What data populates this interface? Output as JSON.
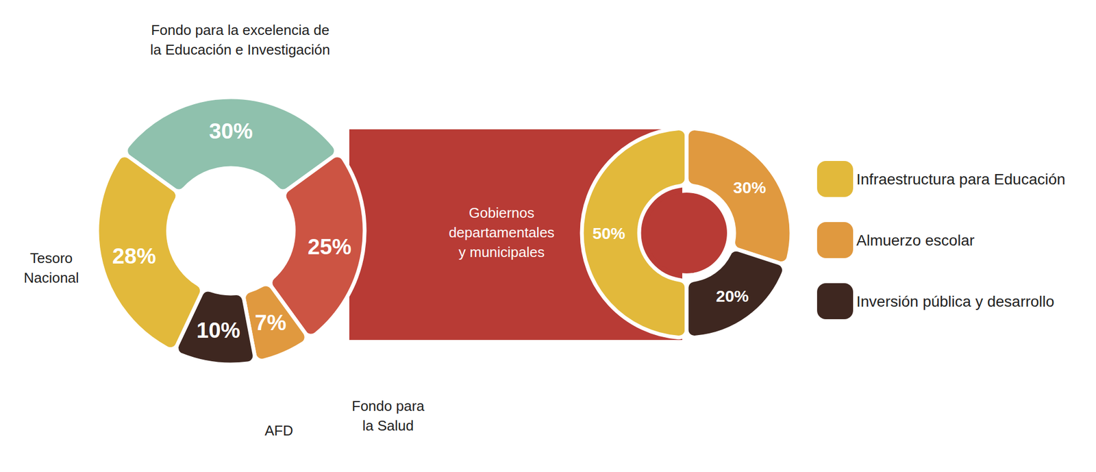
{
  "chart_data": [
    {
      "type": "pie",
      "categories": [
        "Fondo para la excelencia de\nla Educación e Investigación",
        "Gobiernos\ndepartamentales\ny municipales",
        "Fondo para\nla Salud",
        "AFD",
        "Tesoro\nNacional"
      ],
      "values": [
        30,
        25,
        7,
        10,
        28
      ],
      "value_labels": [
        "30%",
        "25%",
        "7%",
        "10%",
        "28%"
      ],
      "colors": [
        "#8fc1ad",
        "#cc5443",
        "#e0993f",
        "#3e2720",
        "#e2b93b"
      ],
      "data_labels": true
    },
    {
      "type": "pie",
      "categories": [
        "Infraestructura para Educación",
        "Almuerzo escolar",
        "Inversión pública y desarrollo"
      ],
      "values": [
        50,
        30,
        20
      ],
      "value_labels": [
        "50%",
        "30%",
        "20%"
      ],
      "colors": [
        "#e2b93b",
        "#e0993f",
        "#3e2720"
      ],
      "data_labels": true,
      "legend": "right"
    }
  ]
}
